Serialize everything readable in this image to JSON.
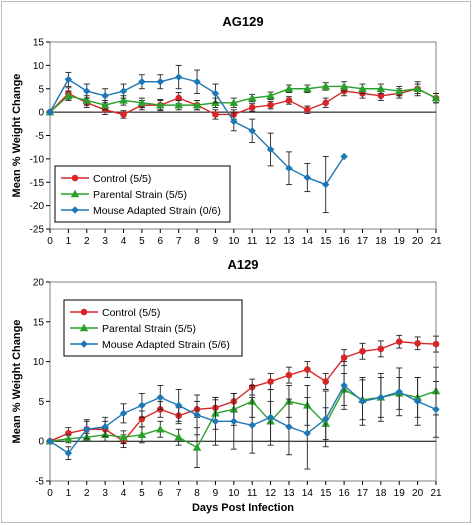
{
  "chart_data": [
    {
      "type": "line",
      "title": "AG129",
      "xlabel": "",
      "ylabel": "Mean % Weight Change",
      "xlim": [
        0,
        21
      ],
      "ylim": [
        -25,
        15
      ],
      "xticks": [
        0,
        1,
        2,
        3,
        4,
        5,
        6,
        7,
        8,
        9,
        10,
        11,
        12,
        13,
        14,
        15,
        16,
        17,
        18,
        19,
        20,
        21
      ],
      "yticks": [
        -25,
        -20,
        -15,
        -10,
        -5,
        0,
        5,
        10,
        15
      ],
      "grid": false,
      "legend_position": "bottom-left",
      "series": [
        {
          "name": "Control (5/5)",
          "color": "#d62728",
          "marker": "circle",
          "x": [
            0,
            1,
            2,
            3,
            4,
            5,
            6,
            7,
            8,
            9,
            10,
            11,
            12,
            13,
            14,
            15,
            16,
            17,
            18,
            19,
            20,
            21
          ],
          "y": [
            0,
            4,
            2,
            0.5,
            -0.5,
            1.5,
            1.5,
            3,
            1.5,
            -0.5,
            -0.5,
            1,
            1.5,
            2.5,
            0.5,
            2,
            4.5,
            4,
            3.5,
            4,
            5,
            3
          ],
          "err": [
            0,
            1.2,
            1,
            1,
            0.8,
            1,
            1.2,
            1.2,
            1,
            1,
            1,
            0.8,
            0.8,
            0.8,
            0.8,
            1,
            1,
            1,
            1,
            1,
            1,
            1
          ]
        },
        {
          "name": "Parental Strain (5/5)",
          "color": "#2ca02c",
          "marker": "triangle",
          "x": [
            0,
            1,
            2,
            3,
            4,
            5,
            6,
            7,
            8,
            9,
            10,
            11,
            12,
            13,
            14,
            15,
            16,
            17,
            18,
            19,
            20,
            21
          ],
          "y": [
            0,
            3.5,
            2.5,
            1.5,
            2.5,
            2,
            1.5,
            1.5,
            1.5,
            2,
            2,
            3,
            3.5,
            5,
            5,
            5.5,
            5.5,
            5,
            5,
            4.5,
            5,
            3
          ],
          "err": [
            0,
            1,
            1,
            1,
            1,
            1,
            1,
            1,
            1,
            1,
            1,
            0.8,
            0.8,
            0.8,
            0.8,
            0.8,
            1,
            1,
            1,
            1,
            1.5,
            1
          ]
        },
        {
          "name": "Mouse Adapted Strain (0/6)",
          "color": "#1f77b4",
          "marker": "diamond",
          "x": [
            0,
            1,
            2,
            3,
            4,
            5,
            6,
            7,
            8,
            9,
            10,
            11,
            12,
            13,
            14,
            15,
            16
          ],
          "y": [
            0,
            7,
            4.5,
            3.5,
            4.5,
            6.5,
            6.5,
            7.5,
            6.5,
            4,
            -2,
            -4,
            -8,
            -12,
            -14,
            -15.5,
            -9.5
          ],
          "err": [
            0,
            1.5,
            1.5,
            1.5,
            1.5,
            1.5,
            1.5,
            2.5,
            2.5,
            2,
            2,
            2.5,
            3.5,
            3.5,
            3,
            6,
            0
          ]
        }
      ]
    },
    {
      "type": "line",
      "title": "A129",
      "xlabel": "Days Post Infection",
      "ylabel": "Mean % Weight Change",
      "xlim": [
        0,
        21
      ],
      "ylim": [
        -5,
        20
      ],
      "xticks": [
        0,
        1,
        2,
        3,
        4,
        5,
        6,
        7,
        8,
        9,
        10,
        11,
        12,
        13,
        14,
        15,
        16,
        17,
        18,
        19,
        20,
        21
      ],
      "yticks": [
        -5,
        0,
        5,
        10,
        15,
        20
      ],
      "grid": false,
      "legend_position": "top-left",
      "series": [
        {
          "name": "Control (5/5)",
          "color": "#d62728",
          "marker": "circle",
          "x": [
            0,
            1,
            2,
            3,
            4,
            5,
            6,
            7,
            8,
            9,
            10,
            11,
            12,
            13,
            14,
            15,
            16,
            17,
            18,
            19,
            20,
            21
          ],
          "y": [
            0,
            1,
            1.5,
            1.5,
            0,
            2.8,
            4,
            3.2,
            4,
            4.2,
            5,
            6.8,
            7.5,
            8.3,
            9,
            7.5,
            10.5,
            11.3,
            11.6,
            12.5,
            12.3,
            12.2
          ],
          "err": [
            0,
            0.7,
            1,
            1,
            0.8,
            1,
            1,
            1,
            1,
            1,
            1,
            1,
            1,
            1,
            1,
            1,
            1,
            1,
            1,
            0.8,
            0.8,
            1
          ]
        },
        {
          "name": "Parental Strain (5/5)",
          "color": "#2ca02c",
          "marker": "triangle",
          "x": [
            0,
            1,
            2,
            3,
            4,
            5,
            6,
            7,
            8,
            9,
            10,
            11,
            12,
            13,
            14,
            15,
            16,
            17,
            18,
            19,
            20,
            21
          ],
          "y": [
            0,
            0.3,
            0.5,
            0.8,
            0.5,
            0.8,
            1.5,
            0.5,
            -0.8,
            3.5,
            4,
            5,
            2.5,
            5,
            4.5,
            2.2,
            6.5,
            5.2,
            5.5,
            6,
            5.5,
            6.3
          ],
          "err": [
            0,
            0.5,
            0.5,
            0.8,
            0.8,
            1,
            1,
            1,
            2.5,
            2,
            2,
            2,
            2.5,
            2,
            2.5,
            2,
            2,
            2.5,
            2.5,
            2,
            2.5,
            3
          ]
        },
        {
          "name": "Mouse Adapted Strain (5/6)",
          "color": "#1f77b4",
          "marker": "diamond",
          "x": [
            0,
            1,
            2,
            3,
            4,
            5,
            6,
            7,
            8,
            9,
            10,
            11,
            12,
            13,
            14,
            15,
            16,
            17,
            18,
            19,
            20,
            21
          ],
          "y": [
            0,
            -1.5,
            1.5,
            1.8,
            3.5,
            4.5,
            5.5,
            4.5,
            3.3,
            2.5,
            2.5,
            2,
            3,
            1.8,
            1,
            2.8,
            7,
            5,
            5.5,
            6.2,
            5,
            4
          ],
          "err": [
            0,
            0.8,
            1.2,
            1.2,
            1.2,
            1.5,
            1.5,
            2,
            2.5,
            3,
            3.5,
            3.5,
            3.5,
            3.5,
            4.5,
            3.5,
            3,
            3,
            3,
            3,
            3,
            3.5
          ]
        }
      ]
    }
  ]
}
